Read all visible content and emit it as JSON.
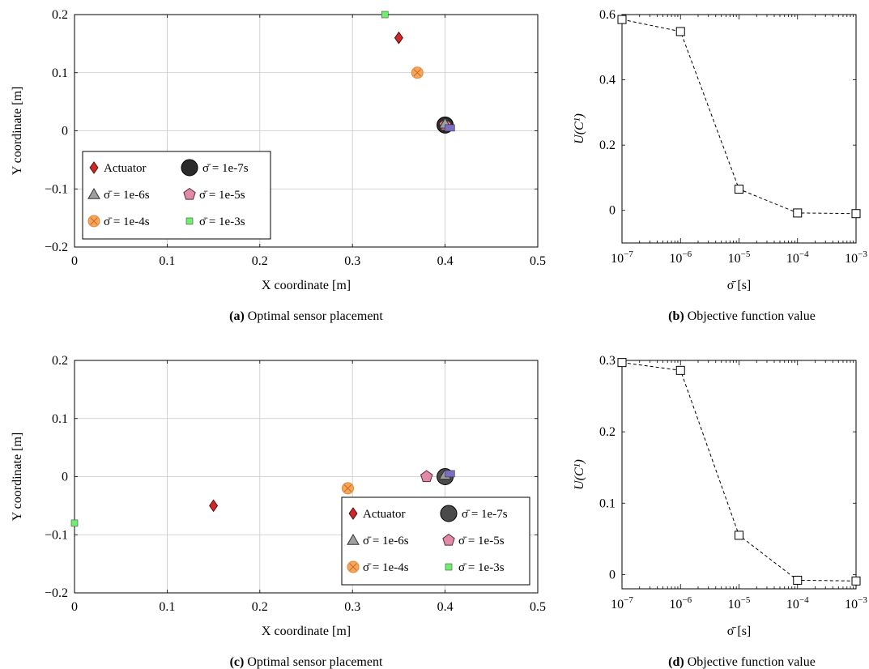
{
  "chart_data": [
    {
      "id": "a",
      "type": "scatter",
      "caption_label": "(a)",
      "caption_text": "Optimal sensor placement",
      "xlabel": "X coordinate [m]",
      "ylabel": "Y coordinate [m]",
      "xlim": [
        0,
        0.5
      ],
      "ylim": [
        -0.2,
        0.2
      ],
      "xticks": [
        0,
        0.1,
        0.2,
        0.3,
        0.4,
        0.5
      ],
      "yticks": [
        -0.2,
        -0.1,
        0,
        0.1,
        0.2
      ],
      "xtick_labels": [
        "0",
        "0.1",
        "0.2",
        "0.3",
        "0.4",
        "0.5"
      ],
      "ytick_labels": [
        "−0.2",
        "−0.1",
        "0",
        "0.1",
        "0.2"
      ],
      "grid": true,
      "legend_position": "bottom-left",
      "series": [
        {
          "name": "Actuator",
          "marker": "diamond",
          "color": "#cc2a2a",
          "x": 0.35,
          "y": 0.16
        },
        {
          "name": "σ̄ = 1e-7s",
          "marker": "circle",
          "color": "#2b2b2b",
          "x": 0.4,
          "y": 0.01
        },
        {
          "name": "σ̄ = 1e-6s",
          "marker": "triangle",
          "color": "#a0a0a0",
          "x": 0.4,
          "y": 0.012
        },
        {
          "name": "σ̄ = 1e-5s",
          "marker": "pentagon",
          "color": "#e08aa8",
          "x": 0.4,
          "y": 0.01
        },
        {
          "name": "σ̄ = 1e-4s",
          "marker": "circle-x",
          "color": "#f5a65b",
          "x": 0.37,
          "y": 0.1
        },
        {
          "name": "σ̄ = 1e-3s",
          "marker": "square",
          "color": "#6ef06e",
          "x": 0.335,
          "y": 0.2
        }
      ],
      "extra_marker": {
        "marker": "square",
        "color": "#7a6fc2",
        "x": 0.405,
        "y": 0.005
      }
    },
    {
      "id": "b",
      "type": "line",
      "caption_label": "(b)",
      "caption_text": "Objective function value",
      "xlabel": "σ̄ [s]",
      "ylabel": "U(C¹)",
      "xscale": "log",
      "xlim": [
        1e-07,
        0.001
      ],
      "ylim": [
        -0.1,
        0.6
      ],
      "yticks": [
        0,
        0.2,
        0.4,
        0.6
      ],
      "ytick_labels": [
        "0",
        "0.2",
        "0.4",
        "0.6"
      ],
      "xtick_exponents": [
        "−7",
        "−6",
        "−5",
        "−4",
        "−3"
      ],
      "xtick_base": "10",
      "grid": false,
      "series": [
        {
          "x": [
            1e-07,
            1e-06,
            1e-05,
            0.0001,
            0.001
          ],
          "y": [
            0.585,
            0.548,
            0.065,
            -0.008,
            -0.01
          ]
        }
      ]
    },
    {
      "id": "c",
      "type": "scatter",
      "caption_label": "(c)",
      "caption_text": "Optimal sensor placement",
      "xlabel": "X coordinate [m]",
      "ylabel": "Y coordinate [m]",
      "xlim": [
        0,
        0.5
      ],
      "ylim": [
        -0.2,
        0.2
      ],
      "xticks": [
        0,
        0.1,
        0.2,
        0.3,
        0.4,
        0.5
      ],
      "yticks": [
        -0.2,
        -0.1,
        0,
        0.1,
        0.2
      ],
      "xtick_labels": [
        "0",
        "0.1",
        "0.2",
        "0.3",
        "0.4",
        "0.5"
      ],
      "ytick_labels": [
        "−0.2",
        "−0.1",
        "0",
        "0.1",
        "0.2"
      ],
      "grid": true,
      "legend_position": "bottom-right",
      "series": [
        {
          "name": "Actuator",
          "marker": "diamond",
          "color": "#cc2a2a",
          "x": 0.15,
          "y": -0.05
        },
        {
          "name": "σ̄ = 1e-7s",
          "marker": "circle",
          "color": "#4a4a4a",
          "x": 0.4,
          "y": 0.0
        },
        {
          "name": "σ̄ = 1e-6s",
          "marker": "triangle",
          "color": "#a0a0a0",
          "x": 0.4,
          "y": 0.003
        },
        {
          "name": "σ̄ = 1e-5s",
          "marker": "pentagon",
          "color": "#e08aa8",
          "x": 0.38,
          "y": 0.0
        },
        {
          "name": "σ̄ = 1e-4s",
          "marker": "circle-x",
          "color": "#f5a65b",
          "x": 0.295,
          "y": -0.02
        },
        {
          "name": "σ̄ = 1e-3s",
          "marker": "square",
          "color": "#6ef06e",
          "x": 0.0,
          "y": -0.08
        }
      ],
      "extra_marker": {
        "marker": "square",
        "color": "#7a6fc2",
        "x": 0.405,
        "y": 0.005
      }
    },
    {
      "id": "d",
      "type": "line",
      "caption_label": "(d)",
      "caption_text": "Objective function value",
      "xlabel": "σ̄ [s]",
      "ylabel": "U(C¹)",
      "xscale": "log",
      "xlim": [
        1e-07,
        0.001
      ],
      "ylim": [
        -0.02,
        0.3
      ],
      "yticks": [
        0,
        0.1,
        0.2,
        0.3
      ],
      "ytick_labels": [
        "0",
        "0.1",
        "0.2",
        "0.3"
      ],
      "xtick_exponents": [
        "−7",
        "−6",
        "−5",
        "−4",
        "−3"
      ],
      "xtick_base": "10",
      "grid": false,
      "series": [
        {
          "x": [
            1e-07,
            1e-06,
            1e-05,
            0.0001,
            0.001
          ],
          "y": [
            0.297,
            0.286,
            0.055,
            -0.008,
            -0.009
          ]
        }
      ]
    }
  ]
}
